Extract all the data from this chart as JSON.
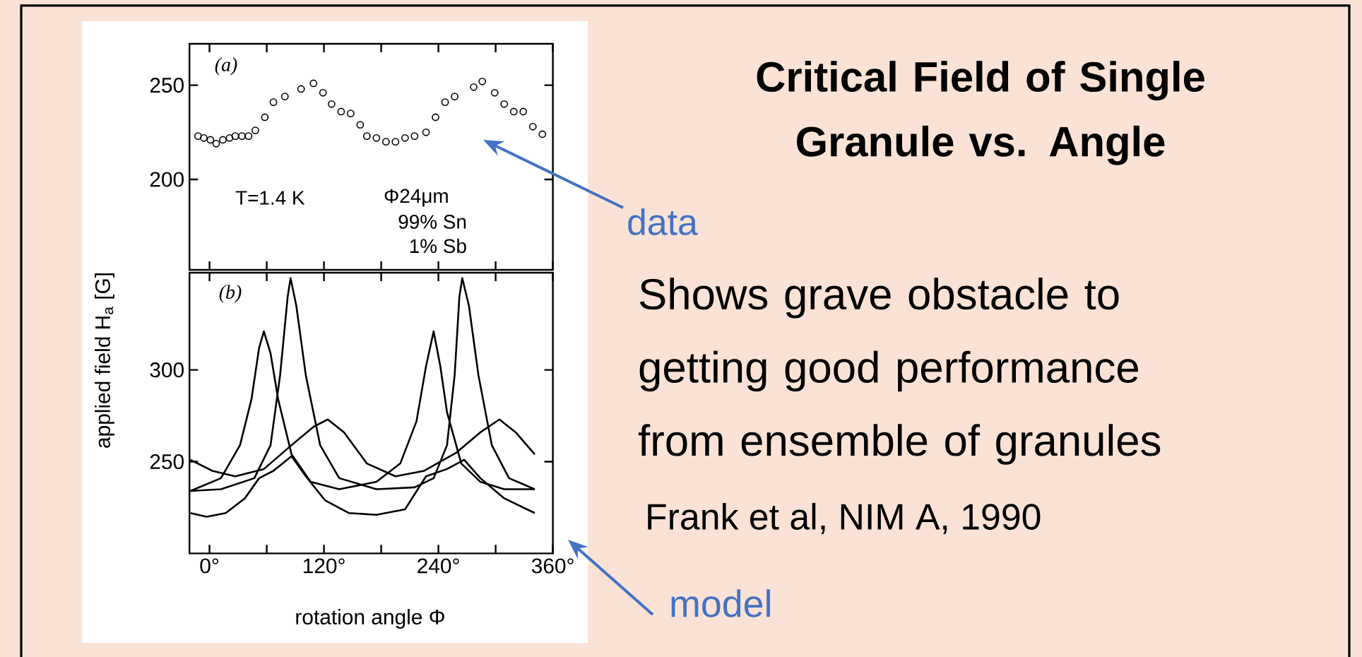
{
  "chart_data": [
    {
      "type": "scatter",
      "annotations": [
        "(a)",
        "T=1.4 K",
        "Φ24μm",
        "99% Sn",
        "1% Sb",
        "data"
      ],
      "x": [
        -12,
        -6,
        1,
        7,
        14,
        21,
        27,
        34,
        41,
        48,
        58,
        67,
        79,
        96,
        109,
        119,
        128,
        138,
        148,
        158,
        165,
        175,
        185,
        195,
        205,
        215,
        227,
        237,
        247,
        257,
        277,
        286,
        299,
        309,
        319,
        329,
        339,
        349
      ],
      "values": [
        223,
        222,
        221,
        219,
        221,
        222,
        223,
        223,
        223,
        226,
        233,
        241,
        244,
        248,
        251,
        246,
        240,
        236,
        235,
        229,
        223,
        222,
        220,
        220,
        222,
        223,
        225,
        233,
        241,
        244,
        249,
        252,
        246,
        240,
        236,
        236,
        228,
        224
      ],
      "color": "#000000",
      "marker": "circle",
      "xlim": [
        -21,
        360
      ],
      "xticks": [
        0,
        60,
        120,
        180,
        240,
        300,
        360
      ],
      "ylim": [
        152,
        272
      ],
      "yticks": [
        200,
        250
      ],
      "tick_labels": "y"
    },
    {
      "type": "line",
      "ylabel": "applied field H$_{a}$ [G]",
      "xlabel": "rotation angle Φ",
      "annotations": [
        "(b)",
        "model"
      ],
      "series": [
        {
          "color": "#000000",
          "x": [
            -20,
            12,
            32,
            44,
            52,
            57,
            64,
            72,
            86,
            106,
            136,
            175,
            200,
            217,
            227,
            235,
            242,
            249,
            264,
            284,
            309,
            341
          ],
          "values": [
            234,
            241,
            259,
            284,
            312,
            321,
            309,
            284,
            254,
            239,
            235,
            239,
            249,
            272,
            302,
            321,
            302,
            277,
            249,
            239,
            235,
            235
          ]
        },
        {
          "color": "#000000",
          "x": [
            -20,
            12,
            47,
            64,
            74,
            82,
            85,
            91,
            101,
            116,
            136,
            175,
            215,
            235,
            249,
            257,
            262,
            265,
            272,
            282,
            296,
            314,
            341
          ],
          "values": [
            234,
            235,
            241,
            259,
            297,
            340,
            350,
            335,
            297,
            259,
            241,
            235,
            236,
            241,
            259,
            297,
            340,
            350,
            335,
            297,
            259,
            241,
            235
          ]
        },
        {
          "color": "#000000",
          "x": [
            -20,
            3,
            27,
            57,
            86,
            109,
            124,
            141,
            165,
            195,
            225,
            259,
            284,
            304,
            321,
            341
          ],
          "values": [
            251,
            245,
            242,
            246,
            259,
            269,
            273,
            266,
            249,
            242,
            245,
            255,
            266,
            273,
            266,
            254
          ]
        },
        {
          "color": "#000000",
          "x": [
            -20,
            -3,
            17,
            37,
            52,
            67,
            86,
            101,
            121,
            146,
            175,
            205,
            227,
            249,
            267,
            284,
            309,
            341
          ],
          "values": [
            222,
            220,
            222,
            230,
            241,
            245,
            253,
            242,
            229,
            222,
            221,
            224,
            242,
            246,
            251,
            241,
            230,
            222
          ]
        }
      ],
      "xlim": [
        -21,
        360
      ],
      "xticks": [
        {
          "value": 0,
          "label": "0°"
        },
        {
          "value": 60,
          "label": null
        },
        {
          "value": 120,
          "label": "120°"
        },
        {
          "value": 180,
          "label": null
        },
        {
          "value": 240,
          "label": "240°"
        },
        {
          "value": 300,
          "label": null
        },
        {
          "value": 360,
          "label": "360°"
        }
      ],
      "ylim": [
        200,
        353
      ],
      "yticks": [
        250,
        300
      ],
      "line_style": "solid"
    },
    {
      "type": "other",
      "title": "Critical Field of Single Granule vs. Angle",
      "annotations": [
        "Shows grave obstacle to getting good performance from ensemble of granules",
        "Frank et al, NIM A, 1990"
      ]
    }
  ]
}
